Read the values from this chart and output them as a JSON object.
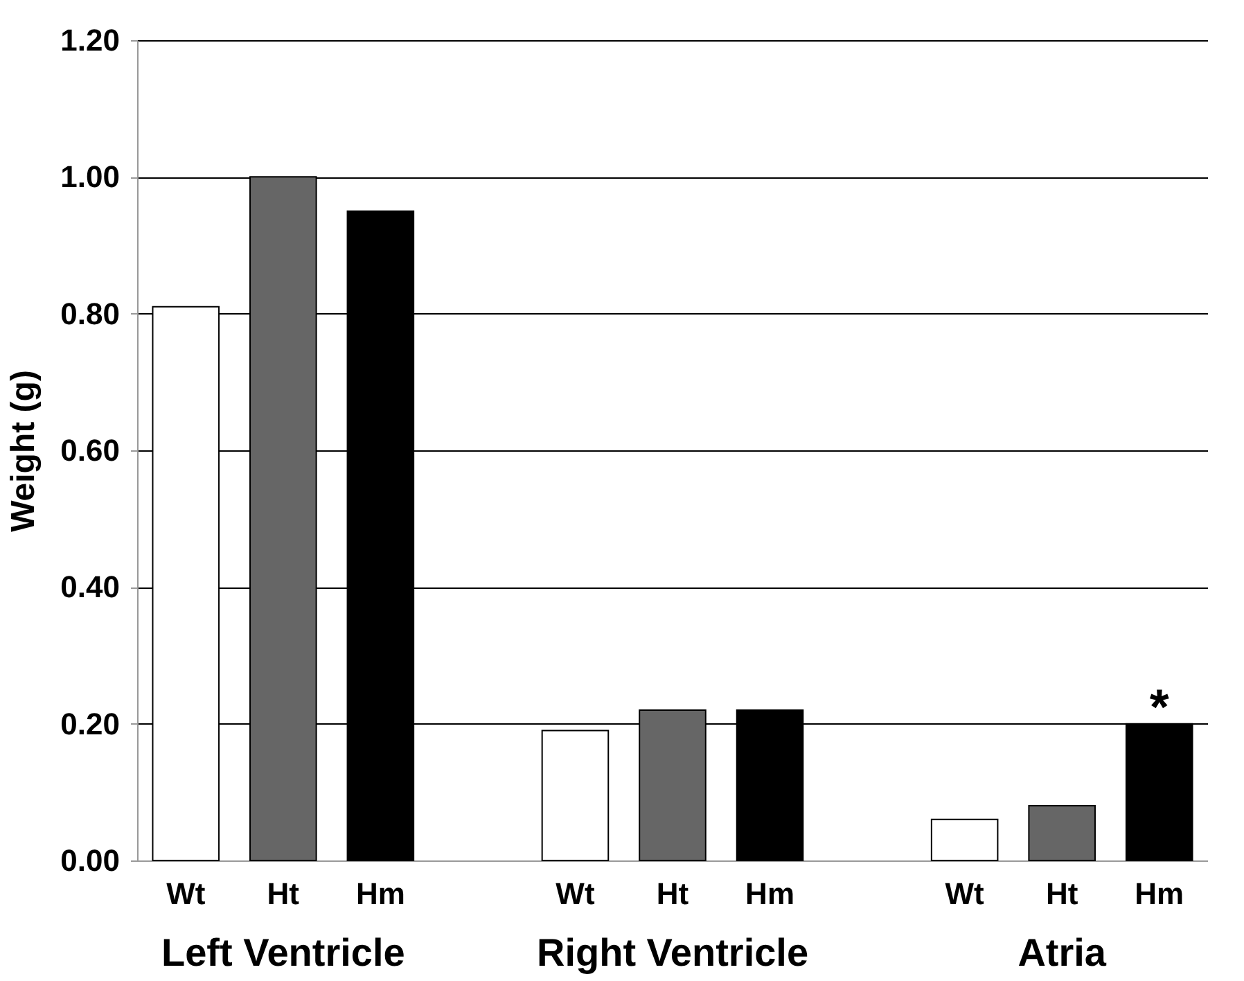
{
  "chart_data": {
    "type": "bar",
    "ylabel": "Weight (g)",
    "categories": [
      "Left Ventricle",
      "Right Ventricle",
      "Atria"
    ],
    "series": [
      {
        "name": "Wt",
        "color": "#ffffff",
        "values": [
          0.81,
          0.19,
          0.06
        ]
      },
      {
        "name": "Ht",
        "color": "#666666",
        "values": [
          1.0,
          0.22,
          0.08
        ]
      },
      {
        "name": "Hm",
        "color": "#000000",
        "values": [
          0.95,
          0.22,
          0.2
        ]
      }
    ],
    "ylim": [
      0,
      1.2
    ],
    "yticks": [
      {
        "value": 0,
        "label": "0.00"
      },
      {
        "value": 0.2,
        "label": "0.20"
      },
      {
        "value": 0.4,
        "label": "0.40"
      },
      {
        "value": 0.6,
        "label": "0.60"
      },
      {
        "value": 0.8,
        "label": "0.80"
      },
      {
        "value": 1.0,
        "label": "1.00"
      },
      {
        "value": 1.2,
        "label": "1.20"
      }
    ],
    "grid": "y",
    "annotations": [
      "*"
    ]
  }
}
